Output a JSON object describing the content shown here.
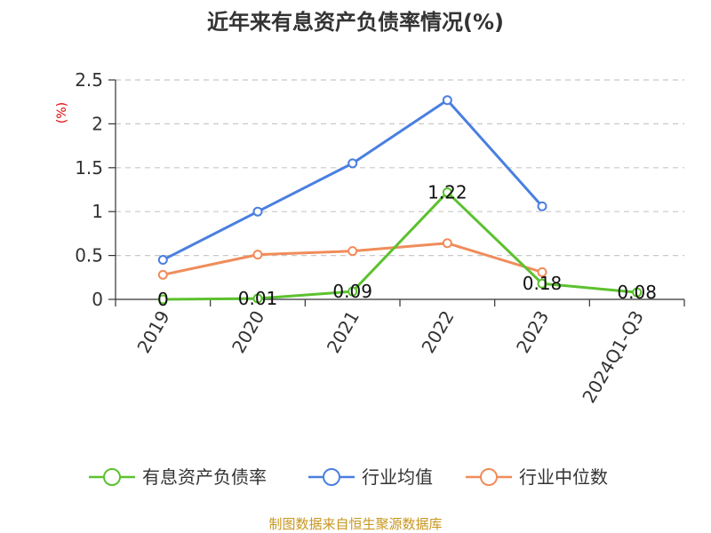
{
  "chart_data": {
    "type": "line",
    "title": "近年来有息资产负债率情况(%)",
    "ylabel": "(%)",
    "categories": [
      "2019",
      "2020",
      "2021",
      "2022",
      "2023",
      "2024Q1-Q3"
    ],
    "ylim": [
      0,
      2.5
    ],
    "yticks": [
      "0",
      "0.5",
      "1",
      "1.5",
      "2",
      "2.5"
    ],
    "grid": true,
    "legend_position": "bottom",
    "series": [
      {
        "name": "有息资产负债率",
        "color": "#5cc12f",
        "values": [
          0,
          0.01,
          0.09,
          1.22,
          0.18,
          0.08
        ],
        "labels": [
          "0",
          "0.01",
          "0.09",
          "1.22",
          "0.18",
          "0.08"
        ]
      },
      {
        "name": "行业均值",
        "color": "#4a7fe0",
        "values": [
          0.45,
          1.0,
          1.55,
          2.27,
          1.06,
          null
        ]
      },
      {
        "name": "行业中位数",
        "color": "#f08c5a",
        "values": [
          0.28,
          0.51,
          0.55,
          0.64,
          0.31,
          null
        ]
      }
    ]
  },
  "source": "制图数据来自恒生聚源数据库"
}
